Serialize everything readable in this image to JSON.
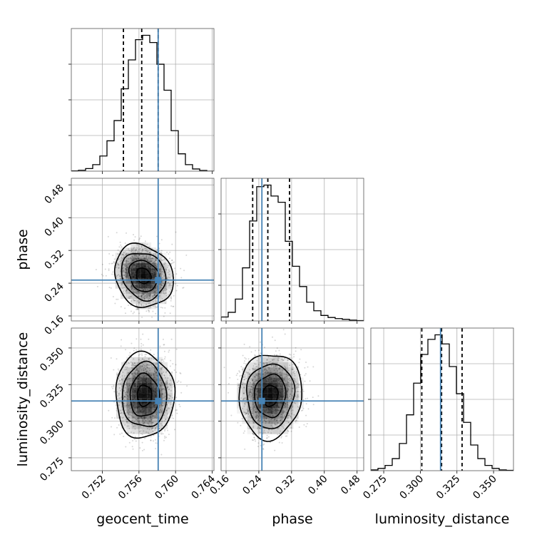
{
  "chart_data": {
    "type": "corner",
    "parameters": [
      "geocent_time",
      "phase",
      "luminosity_distance"
    ],
    "truths": {
      "geocent_time": 0.7581,
      "phase": 0.2475,
      "luminosity_distance": 0.3138
    },
    "quantiles": {
      "geocent_time": [
        0.7543,
        0.7563,
        0.7581
      ],
      "phase": [
        0.225,
        0.262,
        0.315
      ],
      "luminosity_distance": [
        0.301,
        0.3145,
        0.3285
      ]
    },
    "axes": {
      "geocent_time": {
        "range": [
          0.7486,
          0.7642
        ],
        "ticks": [
          "0.752",
          "0.756",
          "0.760",
          "0.764"
        ],
        "tick_values": [
          0.752,
          0.756,
          0.76,
          0.764
        ]
      },
      "phase": {
        "range": [
          0.1478,
          0.4962
        ],
        "ticks": [
          "0.16",
          "0.24",
          "0.32",
          "0.40",
          "0.48"
        ],
        "tick_values": [
          0.16,
          0.24,
          0.32,
          0.4,
          0.48
        ]
      },
      "luminosity_distance": {
        "range": [
          0.2662,
          0.3636
        ],
        "ticks": [
          "0.275",
          "0.300",
          "0.325",
          "0.350"
        ],
        "tick_values": [
          0.275,
          0.3,
          0.325,
          0.35
        ]
      }
    },
    "hist_1d": {
      "geocent_time": [
        0.2,
        0.6,
        1.8,
        4.5,
        10.5,
        21,
        35,
        57,
        77,
        91,
        94,
        89,
        74,
        56,
        28,
        12,
        4.5,
        1.5,
        0.5,
        0
      ],
      "phase": [
        2.5,
        5.5,
        14,
        34,
        64,
        86,
        87,
        80,
        76,
        51,
        35,
        22,
        12,
        6.5,
        3.5,
        2.2,
        1.5,
        1.0,
        0.5,
        0.2
      ],
      "luminosity_distance": [
        0.5,
        1.5,
        3.5,
        8,
        18,
        37,
        58,
        77,
        87,
        90,
        84,
        69,
        51,
        32,
        17,
        8,
        3.5,
        1.5,
        0.5,
        0.2
      ]
    },
    "density_2d": [
      {
        "x": "geocent_time",
        "y": "phase",
        "center": [
          0.7565,
          0.258
        ],
        "sigma": [
          0.0013,
          0.031
        ],
        "corr": -0.15
      },
      {
        "x": "geocent_time",
        "y": "luminosity_distance",
        "center": [
          0.7566,
          0.3175
        ],
        "sigma": [
          0.0013,
          0.0118
        ],
        "corr": 0.0
      },
      {
        "x": "phase",
        "y": "luminosity_distance",
        "center": [
          0.268,
          0.3175
        ],
        "sigma": [
          0.031,
          0.0118
        ],
        "corr": 0.05
      }
    ],
    "grid": true,
    "truth_color": "#4682b4",
    "line_color": "#000000",
    "xlabels": [
      "geocent_time",
      "phase",
      "luminosity_distance"
    ],
    "ylabels": [
      "",
      "phase",
      "luminosity_distance"
    ]
  }
}
